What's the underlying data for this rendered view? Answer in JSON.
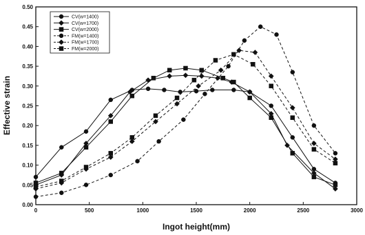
{
  "chart_data": {
    "type": "line",
    "title": "",
    "xlabel": "Ingot height(mm)",
    "ylabel": "Effective strain",
    "xlim": [
      0,
      3000
    ],
    "ylim": [
      0,
      0.5
    ],
    "x_ticks": [
      0,
      500,
      1000,
      1500,
      2000,
      2500,
      3000
    ],
    "y_ticks": [
      0.0,
      0.05,
      0.1,
      0.15,
      0.2,
      0.25,
      0.3,
      0.35,
      0.4,
      0.45,
      0.5
    ],
    "x_tick_labels": [
      "0",
      "500",
      "1000",
      "1500",
      "2000",
      "2500",
      "3000"
    ],
    "y_tick_labels": [
      "0.00",
      "0.05",
      "0.10",
      "0.15",
      "0.20",
      "0.25",
      "0.30",
      "0.35",
      "0.40",
      "0.45",
      "0.50"
    ],
    "grid": false,
    "legend_position": "top-left",
    "series": [
      {
        "name": "CV(w=1400)",
        "style": "solid",
        "marker": "circle",
        "x": [
          0,
          240,
          470,
          700,
          900,
          1050,
          1200,
          1350,
          1500,
          1650,
          1850,
          2000,
          2200,
          2400,
          2600,
          2800
        ],
        "y": [
          0.07,
          0.145,
          0.185,
          0.265,
          0.29,
          0.293,
          0.29,
          0.285,
          0.287,
          0.29,
          0.29,
          0.285,
          0.25,
          0.17,
          0.09,
          0.055
        ]
      },
      {
        "name": "CV(w=1700)",
        "style": "solid",
        "marker": "diamond",
        "x": [
          0,
          240,
          470,
          700,
          880,
          1050,
          1250,
          1400,
          1550,
          1700,
          1830,
          2000,
          2200,
          2350,
          2600,
          2800
        ],
        "y": [
          0.05,
          0.075,
          0.155,
          0.225,
          0.285,
          0.315,
          0.325,
          0.327,
          0.325,
          0.32,
          0.31,
          0.285,
          0.23,
          0.15,
          0.08,
          0.04
        ]
      },
      {
        "name": "CV(w=2000)",
        "style": "solid",
        "marker": "square",
        "x": [
          0,
          240,
          470,
          700,
          900,
          1100,
          1250,
          1400,
          1550,
          1750,
          1850,
          2000,
          2200,
          2400,
          2600,
          2800
        ],
        "y": [
          0.055,
          0.08,
          0.145,
          0.21,
          0.275,
          0.32,
          0.34,
          0.345,
          0.34,
          0.32,
          0.31,
          0.27,
          0.22,
          0.13,
          0.07,
          0.05
        ]
      },
      {
        "name": "FM(w=1400)",
        "style": "dashed",
        "marker": "circle",
        "x": [
          0,
          240,
          470,
          700,
          950,
          1150,
          1380,
          1580,
          1800,
          1950,
          2100,
          2250,
          2400,
          2600,
          2800
        ],
        "y": [
          0.02,
          0.03,
          0.05,
          0.075,
          0.11,
          0.16,
          0.215,
          0.28,
          0.35,
          0.415,
          0.45,
          0.43,
          0.335,
          0.2,
          0.13
        ]
      },
      {
        "name": "FM(w=1700)",
        "style": "dashed",
        "marker": "diamond",
        "x": [
          0,
          240,
          470,
          700,
          900,
          1120,
          1320,
          1520,
          1730,
          1900,
          2050,
          2200,
          2400,
          2600,
          2800
        ],
        "y": [
          0.04,
          0.055,
          0.09,
          0.12,
          0.16,
          0.21,
          0.255,
          0.3,
          0.34,
          0.39,
          0.385,
          0.325,
          0.245,
          0.155,
          0.115
        ]
      },
      {
        "name": "FM(w=2000)",
        "style": "dashed",
        "marker": "square",
        "x": [
          0,
          240,
          470,
          700,
          900,
          1120,
          1320,
          1480,
          1680,
          1850,
          2030,
          2200,
          2400,
          2600,
          2800
        ],
        "y": [
          0.045,
          0.06,
          0.095,
          0.13,
          0.17,
          0.225,
          0.27,
          0.315,
          0.365,
          0.38,
          0.355,
          0.3,
          0.22,
          0.14,
          0.105
        ]
      }
    ]
  }
}
